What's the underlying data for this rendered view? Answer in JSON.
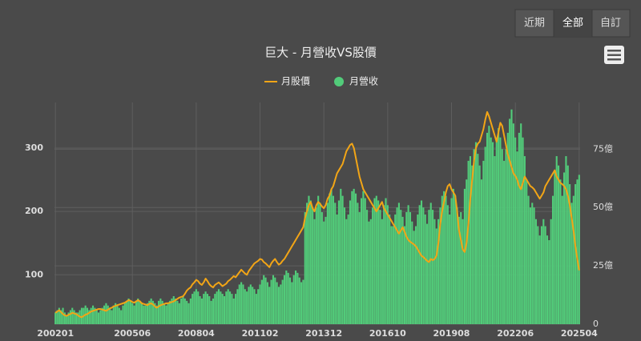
{
  "range_buttons": [
    "近期",
    "全部",
    "自訂"
  ],
  "chart_data": {
    "type": "combo",
    "title": "巨大 - 月營收VS股價",
    "categories": [
      "200201",
      null,
      null,
      null,
      null,
      null,
      null,
      null,
      null,
      null,
      null,
      null,
      null,
      null,
      null,
      null,
      null,
      null,
      null,
      null,
      null,
      null,
      null,
      null,
      null,
      null,
      null,
      null,
      null,
      null,
      null,
      null,
      null,
      null,
      null,
      null,
      null,
      null,
      null,
      null,
      null,
      "200506",
      null,
      null,
      null,
      null,
      null,
      null,
      null,
      null,
      null,
      null,
      null,
      null,
      null,
      null,
      null,
      null,
      null,
      null,
      null,
      null,
      null,
      null,
      null,
      null,
      null,
      null,
      null,
      null,
      null,
      null,
      null,
      null,
      null,
      "200804",
      null,
      null,
      null,
      null,
      null,
      null,
      null,
      null,
      null,
      null,
      null,
      null,
      null,
      null,
      null,
      null,
      null,
      null,
      null,
      null,
      null,
      null,
      null,
      null,
      null,
      null,
      null,
      null,
      null,
      null,
      null,
      null,
      null,
      "201102",
      null,
      null,
      null,
      null,
      null,
      null,
      null,
      null,
      null,
      null,
      null,
      null,
      null,
      null,
      null,
      null,
      null,
      null,
      null,
      null,
      null,
      null,
      null,
      null,
      null,
      null,
      null,
      null,
      null,
      null,
      null,
      null,
      null,
      "201312",
      null,
      null,
      null,
      null,
      null,
      null,
      null,
      null,
      null,
      null,
      null,
      null,
      null,
      null,
      null,
      null,
      null,
      null,
      null,
      null,
      null,
      null,
      null,
      null,
      null,
      null,
      null,
      null,
      null,
      null,
      null,
      null,
      null,
      "201610",
      null,
      null,
      null,
      null,
      null,
      null,
      null,
      null,
      null,
      null,
      null,
      null,
      null,
      null,
      null,
      null,
      null,
      null,
      null,
      null,
      null,
      null,
      null,
      null,
      null,
      null,
      null,
      null,
      null,
      null,
      null,
      null,
      null,
      "201908",
      null,
      null,
      null,
      null,
      null,
      null,
      null,
      null,
      null,
      null,
      null,
      null,
      null,
      null,
      null,
      null,
      null,
      null,
      null,
      null,
      null,
      null,
      null,
      null,
      null,
      null,
      null,
      null,
      null,
      null,
      null,
      null,
      null,
      "202206",
      null,
      null,
      null,
      null,
      null,
      null,
      null,
      null,
      null,
      null,
      null,
      null,
      null,
      null,
      null,
      null,
      null,
      null,
      null,
      null,
      null,
      null,
      null,
      null,
      null,
      null,
      null,
      null,
      null,
      null,
      null,
      null,
      null,
      "202504"
    ],
    "series": [
      {
        "name": "月股價",
        "type": "line",
        "color": "#f2a516",
        "values": [
          40,
          42,
          44,
          41,
          38,
          36,
          35,
          37,
          38,
          40,
          39,
          38,
          36,
          34,
          33,
          35,
          37,
          38,
          40,
          42,
          43,
          44,
          45,
          46,
          46,
          45,
          44,
          43,
          45,
          47,
          48,
          50,
          51,
          52,
          53,
          54,
          55,
          56,
          58,
          60,
          59,
          57,
          56,
          58,
          60,
          58,
          55,
          54,
          53,
          52,
          54,
          55,
          53,
          50,
          48,
          50,
          52,
          53,
          54,
          55,
          55,
          56,
          57,
          58,
          60,
          62,
          64,
          65,
          66,
          70,
          75,
          78,
          80,
          85,
          88,
          92,
          90,
          86,
          84,
          88,
          94,
          90,
          85,
          82,
          80,
          84,
          86,
          88,
          85,
          82,
          84,
          86,
          90,
          92,
          95,
          98,
          96,
          100,
          104,
          108,
          105,
          102,
          100,
          106,
          110,
          114,
          118,
          120,
          122,
          125,
          124,
          120,
          118,
          115,
          112,
          118,
          122,
          125,
          120,
          116,
          118,
          122,
          125,
          130,
          135,
          140,
          145,
          150,
          155,
          160,
          165,
          170,
          175,
          190,
          200,
          210,
          215,
          205,
          200,
          210,
          215,
          212,
          208,
          205,
          210,
          220,
          225,
          235,
          240,
          250,
          260,
          265,
          270,
          275,
          285,
          295,
          300,
          305,
          307,
          300,
          285,
          270,
          255,
          245,
          235,
          230,
          225,
          220,
          215,
          210,
          205,
          200,
          205,
          210,
          215,
          205,
          200,
          195,
          190,
          185,
          180,
          175,
          170,
          165,
          170,
          175,
          168,
          160,
          155,
          152,
          150,
          148,
          145,
          140,
          135,
          130,
          128,
          125,
          122,
          120,
          125,
          123,
          125,
          130,
          150,
          180,
          200,
          215,
          230,
          240,
          243,
          235,
          230,
          225,
          200,
          170,
          155,
          140,
          136,
          150,
          180,
          220,
          250,
          280,
          300,
          307,
          310,
          320,
          330,
          345,
          357,
          350,
          340,
          330,
          320,
          310,
          325,
          340,
          335,
          320,
          305,
          290,
          280,
          270,
          260,
          256,
          250,
          240,
          235,
          245,
          255,
          250,
          245,
          240,
          238,
          235,
          230,
          225,
          220,
          225,
          230,
          240,
          245,
          250,
          255,
          260,
          265,
          255,
          250,
          245,
          243,
          240,
          235,
          225,
          210,
          190,
          170,
          145,
          125,
          107
        ]
      },
      {
        "name": "月營收",
        "type": "bar",
        "axis": "y2",
        "color": "#52cc7a",
        "values": [
          5,
          6,
          7,
          6,
          7,
          5,
          4,
          5,
          6,
          7,
          6,
          5,
          5,
          6,
          7,
          7,
          8,
          7,
          6,
          7,
          8,
          7,
          6,
          5,
          6,
          7,
          8,
          9,
          8,
          7,
          6,
          8,
          9,
          8,
          7,
          6,
          8,
          9,
          10,
          11,
          10,
          9,
          8,
          10,
          11,
          10,
          9,
          8,
          8,
          9,
          10,
          11,
          10,
          9,
          8,
          10,
          11,
          10,
          9,
          8,
          9,
          10,
          11,
          12,
          11,
          10,
          9,
          11,
          12,
          11,
          10,
          9,
          11,
          13,
          14,
          15,
          14,
          12,
          11,
          13,
          14,
          13,
          12,
          10,
          11,
          13,
          14,
          15,
          14,
          13,
          12,
          14,
          15,
          14,
          13,
          11,
          13,
          15,
          17,
          18,
          17,
          15,
          14,
          16,
          17,
          16,
          15,
          13,
          15,
          17,
          19,
          21,
          20,
          18,
          16,
          19,
          21,
          20,
          18,
          16,
          17,
          19,
          21,
          23,
          22,
          20,
          18,
          21,
          23,
          22,
          20,
          18,
          19,
          48,
          52,
          55,
          53,
          50,
          45,
          50,
          55,
          52,
          48,
          44,
          46,
          52,
          56,
          58,
          55,
          52,
          47,
          53,
          58,
          55,
          50,
          45,
          47,
          53,
          57,
          58,
          56,
          52,
          48,
          54,
          57,
          54,
          49,
          44,
          45,
          50,
          54,
          55,
          53,
          49,
          45,
          51,
          54,
          51,
          47,
          42,
          42,
          47,
          50,
          52,
          49,
          46,
          42,
          48,
          51,
          48,
          44,
          40,
          42,
          47,
          51,
          53,
          50,
          47,
          43,
          49,
          52,
          49,
          45,
          41,
          45,
          50,
          55,
          57,
          55,
          51,
          47,
          54,
          58,
          55,
          50,
          46,
          48,
          45,
          58,
          62,
          70,
          72,
          68,
          75,
          78,
          73,
          68,
          62,
          70,
          76,
          82,
          85,
          80,
          78,
          72,
          80,
          84,
          80,
          75,
          70,
          75,
          82,
          88,
          92,
          86,
          80,
          74,
          82,
          86,
          80,
          72,
          62,
          55,
          50,
          52,
          50,
          45,
          42,
          38,
          42,
          45,
          42,
          38,
          36,
          45,
          55,
          65,
          72,
          68,
          62,
          55,
          65,
          72,
          68,
          60,
          52,
          55,
          60,
          62,
          64
        ]
      }
    ],
    "ylim": [
      22,
      372
    ],
    "yticks": [
      100,
      200,
      300
    ],
    "y2lim": [
      0,
      95
    ],
    "y2ticks": [
      0,
      {
        "value": 25,
        "label": "25億"
      },
      {
        "value": 50,
        "label": "50億"
      },
      {
        "value": 75,
        "label": "75億"
      }
    ],
    "grid": true,
    "legend": "top"
  }
}
